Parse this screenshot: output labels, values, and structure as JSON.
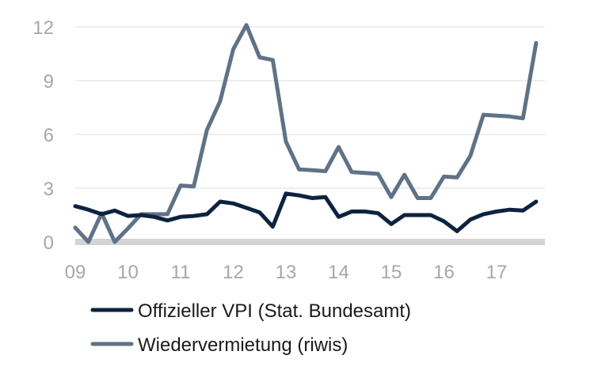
{
  "chart_data": {
    "type": "line",
    "title": "",
    "xlabel": "",
    "ylabel": "",
    "x_tick_labels": [
      "09",
      "10",
      "11",
      "12",
      "13",
      "14",
      "15",
      "16",
      "17"
    ],
    "x_tick_values": [
      2009,
      2010,
      2011,
      2012,
      2013,
      2014,
      2015,
      2016,
      2017
    ],
    "xlim": [
      2009,
      2017.96
    ],
    "y_ticks": [
      0,
      3,
      6,
      9,
      12
    ],
    "ylim": [
      0,
      12.4
    ],
    "grid": "horizontal",
    "legend_position": "bottom-left",
    "series": [
      {
        "name": "Offizieller VPI (Stat. Bundesamt)",
        "color": "#0c2340",
        "x": [
          2009.0,
          2009.25,
          2009.5,
          2009.75,
          2010.0,
          2010.25,
          2010.5,
          2010.75,
          2011.0,
          2011.25,
          2011.5,
          2011.75,
          2012.0,
          2012.25,
          2012.5,
          2012.75,
          2013.0,
          2013.25,
          2013.5,
          2013.75,
          2014.0,
          2014.25,
          2014.5,
          2014.75,
          2015.0,
          2015.25,
          2015.5,
          2015.75,
          2016.0,
          2016.25,
          2016.5,
          2016.75,
          2017.0,
          2017.25,
          2017.5,
          2017.75
        ],
        "values": [
          2.0,
          1.8,
          1.55,
          1.75,
          1.45,
          1.5,
          1.4,
          1.2,
          1.4,
          1.45,
          1.55,
          2.25,
          2.15,
          1.9,
          1.65,
          0.85,
          2.7,
          2.6,
          2.45,
          2.5,
          1.4,
          1.7,
          1.7,
          1.6,
          1.0,
          1.5,
          1.5,
          1.5,
          1.15,
          0.6,
          1.25,
          1.55,
          1.7,
          1.8,
          1.75,
          2.25
        ]
      },
      {
        "name": "Wiedervermietung (riwis)",
        "color": "#5f7286",
        "x": [
          2009.0,
          2009.25,
          2009.5,
          2009.75,
          2010.0,
          2010.25,
          2010.5,
          2010.75,
          2011.0,
          2011.25,
          2011.5,
          2011.75,
          2012.0,
          2012.25,
          2012.5,
          2012.75,
          2013.0,
          2013.25,
          2013.5,
          2013.75,
          2014.0,
          2014.25,
          2014.5,
          2014.75,
          2015.0,
          2015.25,
          2015.5,
          2015.75,
          2016.0,
          2016.25,
          2016.5,
          2016.75,
          2017.0,
          2017.25,
          2017.5,
          2017.75
        ],
        "values": [
          0.8,
          0.0,
          1.6,
          0.0,
          0.75,
          1.55,
          1.55,
          1.55,
          3.15,
          3.1,
          6.25,
          7.85,
          10.75,
          12.1,
          10.3,
          10.15,
          5.6,
          4.05,
          4.0,
          3.95,
          5.3,
          3.9,
          3.85,
          3.8,
          2.5,
          3.75,
          2.45,
          2.45,
          3.65,
          3.6,
          4.8,
          7.1,
          7.05,
          7.0,
          6.9,
          11.1
        ]
      }
    ]
  }
}
